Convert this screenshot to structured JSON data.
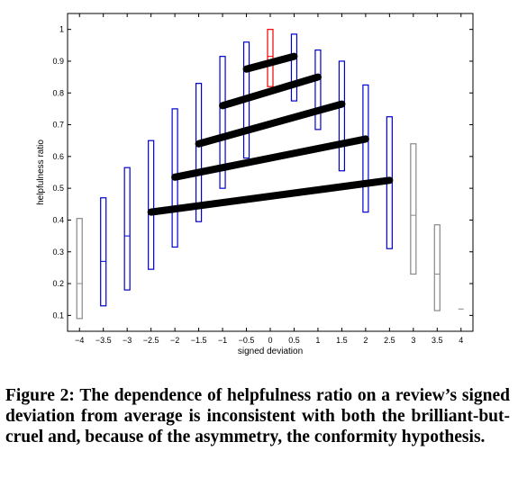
{
  "chart_data": {
    "type": "box",
    "xlabel": "signed deviation",
    "ylabel": "helpfulness ratio",
    "xlim": [
      -4.25,
      4.25
    ],
    "ylim": [
      0.05,
      1.05
    ],
    "xticks": [
      -4,
      -3.5,
      -3,
      -2.5,
      -2,
      -1.5,
      -1,
      -0.5,
      0,
      0.5,
      1,
      1.5,
      2,
      2.5,
      3,
      3.5,
      4
    ],
    "xtick_labels": [
      "−4",
      "−3.5",
      "−3",
      "−2.5",
      "−2",
      "−1.5",
      "−1",
      "−0.5",
      "0",
      "0.5",
      "1",
      "1.5",
      "2",
      "2.5",
      "3",
      "3.5",
      "4"
    ],
    "yticks": [
      0.1,
      0.2,
      0.3,
      0.4,
      0.5,
      0.6,
      0.7,
      0.8,
      0.9,
      1
    ],
    "ytick_labels": [
      "0.1",
      "0.2",
      "0.3",
      "0.4",
      "0.5",
      "0.6",
      "0.7",
      "0.8",
      "0.9",
      "1"
    ],
    "colors": {
      "blue": "#0000cc",
      "gray": "#888888",
      "red": "#ee0000",
      "line": "#000000"
    },
    "boxes": [
      {
        "x": -4,
        "low": 0.09,
        "median": 0.2,
        "high": 0.405,
        "color": "gray"
      },
      {
        "x": -3.5,
        "low": 0.13,
        "median": 0.27,
        "high": 0.47,
        "color": "blue"
      },
      {
        "x": -3,
        "low": 0.18,
        "median": 0.35,
        "high": 0.565,
        "color": "blue"
      },
      {
        "x": -2.5,
        "low": 0.245,
        "median": 0.43,
        "high": 0.65,
        "color": "blue"
      },
      {
        "x": -2,
        "low": 0.315,
        "median": 0.54,
        "high": 0.75,
        "color": "blue"
      },
      {
        "x": -1.5,
        "low": 0.395,
        "median": 0.64,
        "high": 0.83,
        "color": "blue"
      },
      {
        "x": -1,
        "low": 0.5,
        "median": 0.76,
        "high": 0.915,
        "color": "blue"
      },
      {
        "x": -0.5,
        "low": 0.595,
        "median": 0.875,
        "high": 0.96,
        "color": "blue"
      },
      {
        "x": 0,
        "low": 0.82,
        "median": 0.915,
        "high": 1.0,
        "color": "red"
      },
      {
        "x": 0.5,
        "low": 0.775,
        "median": 0.91,
        "high": 0.985,
        "color": "blue"
      },
      {
        "x": 1,
        "low": 0.685,
        "median": 0.85,
        "high": 0.935,
        "color": "blue"
      },
      {
        "x": 1.5,
        "low": 0.555,
        "median": 0.76,
        "high": 0.9,
        "color": "blue"
      },
      {
        "x": 2,
        "low": 0.425,
        "median": 0.655,
        "high": 0.825,
        "color": "blue"
      },
      {
        "x": 2.5,
        "low": 0.31,
        "median": 0.525,
        "high": 0.725,
        "color": "blue"
      },
      {
        "x": 3,
        "low": 0.23,
        "median": 0.415,
        "high": 0.64,
        "color": "gray"
      },
      {
        "x": 3.5,
        "low": 0.115,
        "median": 0.23,
        "high": 0.385,
        "color": "gray"
      },
      {
        "x": 4,
        "low": 0.12,
        "median": 0.12,
        "high": 0.12,
        "color": "gray"
      }
    ],
    "lines": [
      {
        "x": [
          -0.5,
          0.5
        ],
        "y": [
          0.875,
          0.915
        ]
      },
      {
        "x": [
          -1,
          1
        ],
        "y": [
          0.76,
          0.85
        ]
      },
      {
        "x": [
          -1.5,
          1.5
        ],
        "y": [
          0.64,
          0.765
        ]
      },
      {
        "x": [
          -2,
          2
        ],
        "y": [
          0.535,
          0.655
        ]
      },
      {
        "x": [
          -2.5,
          2.5
        ],
        "y": [
          0.425,
          0.525
        ]
      }
    ]
  },
  "caption": "Figure 2: The dependence of helpfulness ratio on a review’s signed deviation from average is inconsistent with both the brilliant-but-cruel and, because of the asymmetry, the conformity hypothesis."
}
